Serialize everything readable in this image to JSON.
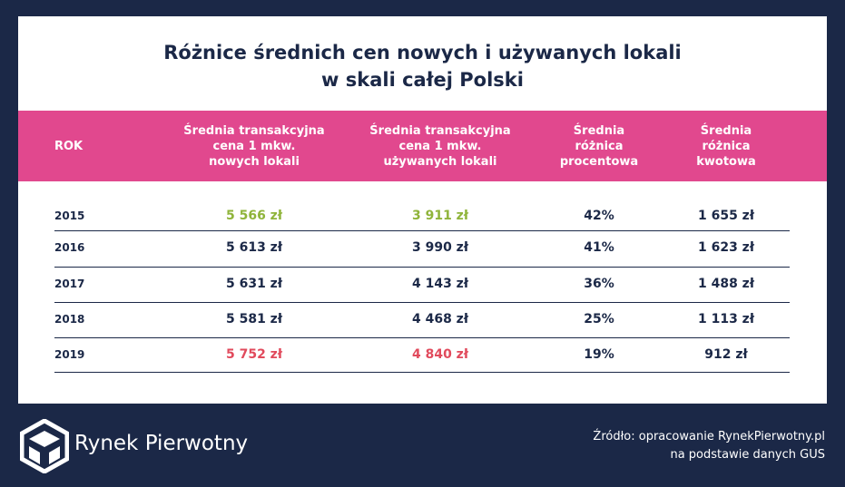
{
  "title": [
    "Różnice średnich cen nowych i używanych lokali",
    "w skali całej Polski"
  ],
  "table": {
    "headers": [
      [
        "ROK"
      ],
      [
        "Średnia transakcyjna",
        "cena 1 mkw.",
        "nowych lokali"
      ],
      [
        "Średnia transakcyjna",
        "cena 1 mkw.",
        "używanych lokali"
      ],
      [
        "Średnia",
        "różnica",
        "procentowa"
      ],
      [
        "Średnia",
        "różnica",
        "kwotowa"
      ]
    ],
    "rows": [
      [
        "2015",
        "5 566 zł",
        "3 911 zł",
        "42%",
        "1 655 zł"
      ],
      [
        "2016",
        "5 613 zł",
        "3 990 zł",
        "41%",
        "1 623 zł"
      ],
      [
        "2017",
        "5 631 zł",
        "4 143 zł",
        "36%",
        "1 488 zł"
      ],
      [
        "2018",
        "5 581 zł",
        "4 468 zł",
        "25%",
        "1 113 zł"
      ],
      [
        "2019",
        "5 752 zł",
        "4 840 zł",
        "19%",
        "912 zł"
      ]
    ]
  },
  "footer": {
    "brand": "Rynek Pierwotny",
    "source": [
      "Źródło: opracowanie RynekPierwotny.pl",
      "na podstawie danych GUS"
    ]
  }
}
